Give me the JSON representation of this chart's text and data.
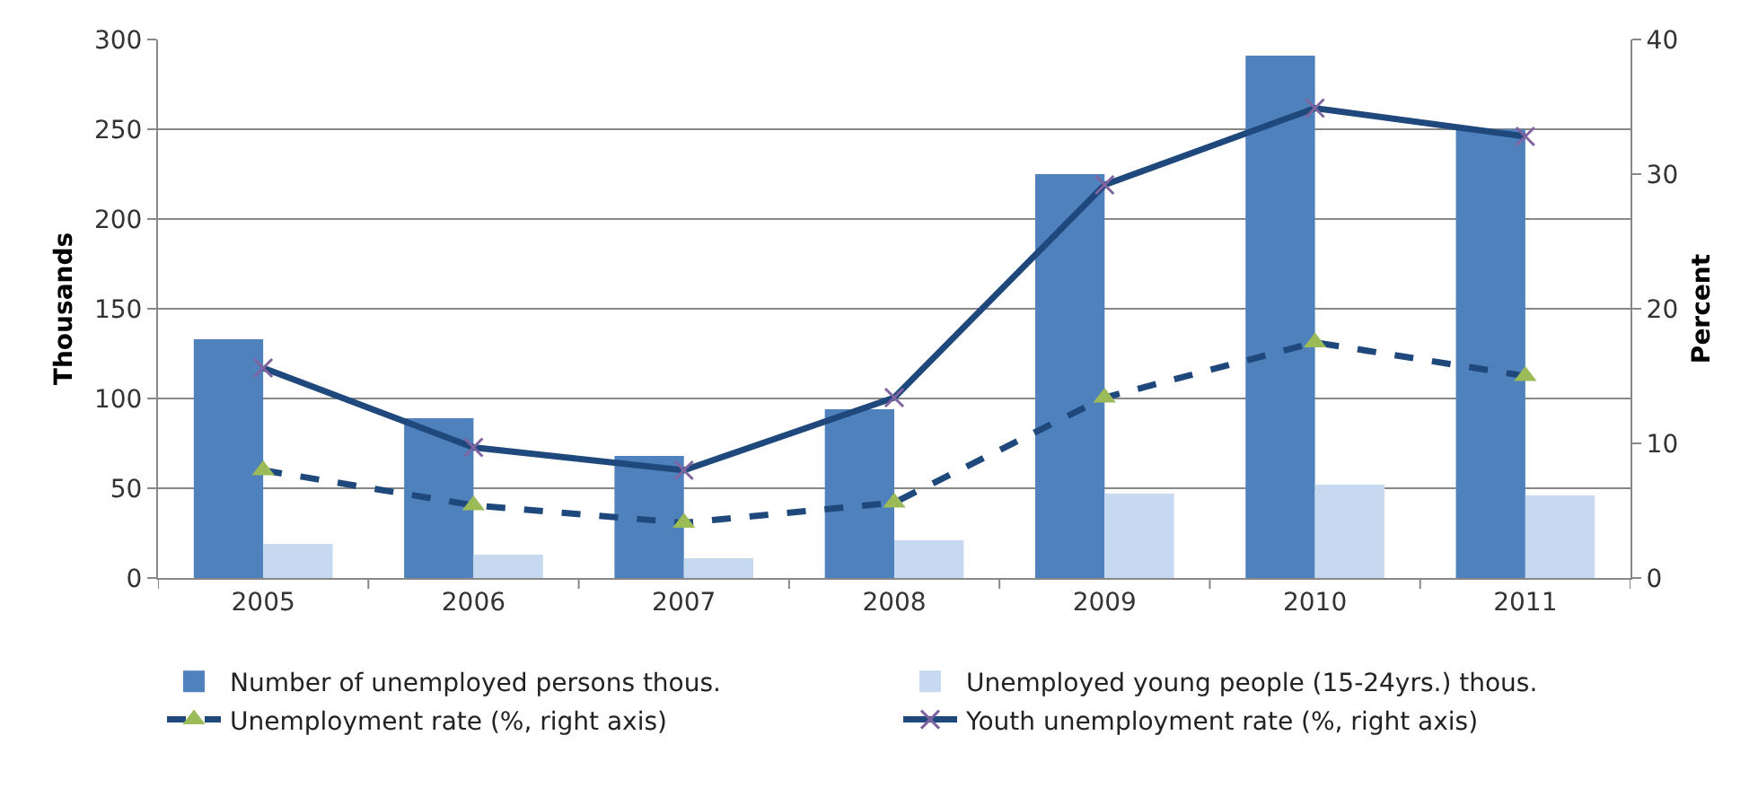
{
  "chart_data": {
    "type": "bar",
    "ylabel": "Thousands",
    "y2label": "Percent",
    "categories": [
      "2005",
      "2006",
      "2007",
      "2008",
      "2009",
      "2010",
      "2011"
    ],
    "series": [
      {
        "name": "Number of unemployed persons thous.",
        "color": "#4f81bd",
        "values": [
          133,
          89,
          68,
          94,
          225,
          291,
          250
        ]
      },
      {
        "name": "Unemployed young people (15-24yrs.) thous.",
        "color": "#c6d9f0",
        "values": [
          19,
          13,
          11,
          21,
          47,
          52,
          46
        ]
      },
      {
        "name": "Unemployment rate (%, right axis)",
        "type": "line",
        "axis": "y2",
        "color": "#1f497d",
        "marker": "triangle",
        "colors": [
          "#9bbb59",
          "#9bbb59",
          "#9bbb59",
          "#9bbb59",
          "#9bbb59",
          "#9bbb59",
          "#9bbb59"
        ],
        "line_style": "dashed",
        "values": [
          8.0,
          5.4,
          4.1,
          5.6,
          13.4,
          17.5,
          15.0
        ]
      },
      {
        "name": "Youth unemployment rate (%, right axis)",
        "type": "line",
        "axis": "y2",
        "color": "#1f497d",
        "marker": "cross",
        "colors": [
          "#8064a2",
          "#8064a2",
          "#8064a2",
          "#8064a2",
          "#8064a2",
          "#8064a2",
          "#8064a2"
        ],
        "line_style": "solid",
        "values": [
          15.6,
          9.7,
          8.0,
          13.4,
          29.2,
          34.9,
          32.8
        ]
      }
    ],
    "ylim": [
      0,
      300
    ],
    "yticks": [
      0,
      50,
      100,
      150,
      200,
      250,
      300
    ],
    "y2lim": [
      0,
      40
    ],
    "y2ticks": [
      0,
      10,
      20,
      30,
      40
    ],
    "grid": "y",
    "legend": "bottom"
  }
}
